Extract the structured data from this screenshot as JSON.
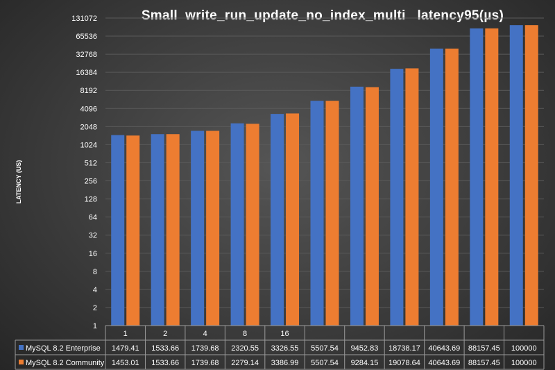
{
  "colors": {
    "series1": "#4472c4",
    "series2": "#ed7d31",
    "gridline": "#5a5a5a",
    "table_border": "#9a9a9a",
    "text": "#ffffff"
  },
  "chart_data": {
    "type": "bar",
    "title": "Small  write_run_update_no_index_multi   latency95(µs)",
    "xlabel": "",
    "ylabel": "LATENCY (US)",
    "y_scale": "log2",
    "ylim": [
      1,
      131072
    ],
    "y_ticks": [
      "1",
      "2",
      "4",
      "8",
      "16",
      "32",
      "64",
      "128",
      "256",
      "512",
      "1024",
      "2048",
      "4096",
      "8192",
      "16384",
      "32768",
      "65536",
      "131072"
    ],
    "grid": true,
    "legend_placement": "data-table",
    "categories": [
      "1",
      "2",
      "4",
      "8",
      "16",
      "",
      "",
      "",
      "",
      "",
      ""
    ],
    "series": [
      {
        "name": "MySQL 8.2 Enterprise",
        "color": "#4472c4",
        "values": [
          1479.41,
          1533.66,
          1739.68,
          2320.55,
          3326.55,
          5507.54,
          9452.83,
          18738.17,
          40643.69,
          88157.45,
          100000
        ],
        "labels": [
          "1479.41",
          "1533.66",
          "1739.68",
          "2320.55",
          "3326.55",
          "5507.54",
          "9452.83",
          "18738.17",
          "40643.69",
          "88157.45",
          "100000"
        ]
      },
      {
        "name": "MySQL 8.2 Community",
        "color": "#ed7d31",
        "values": [
          1453.01,
          1533.66,
          1739.68,
          2279.14,
          3386.99,
          5507.54,
          9284.15,
          19078.64,
          40643.69,
          88157.45,
          100000
        ],
        "labels": [
          "1453.01",
          "1533.66",
          "1739.68",
          "2279.14",
          "3386.99",
          "5507.54",
          "9284.15",
          "19078.64",
          "40643.69",
          "88157.45",
          "100000"
        ]
      }
    ]
  }
}
